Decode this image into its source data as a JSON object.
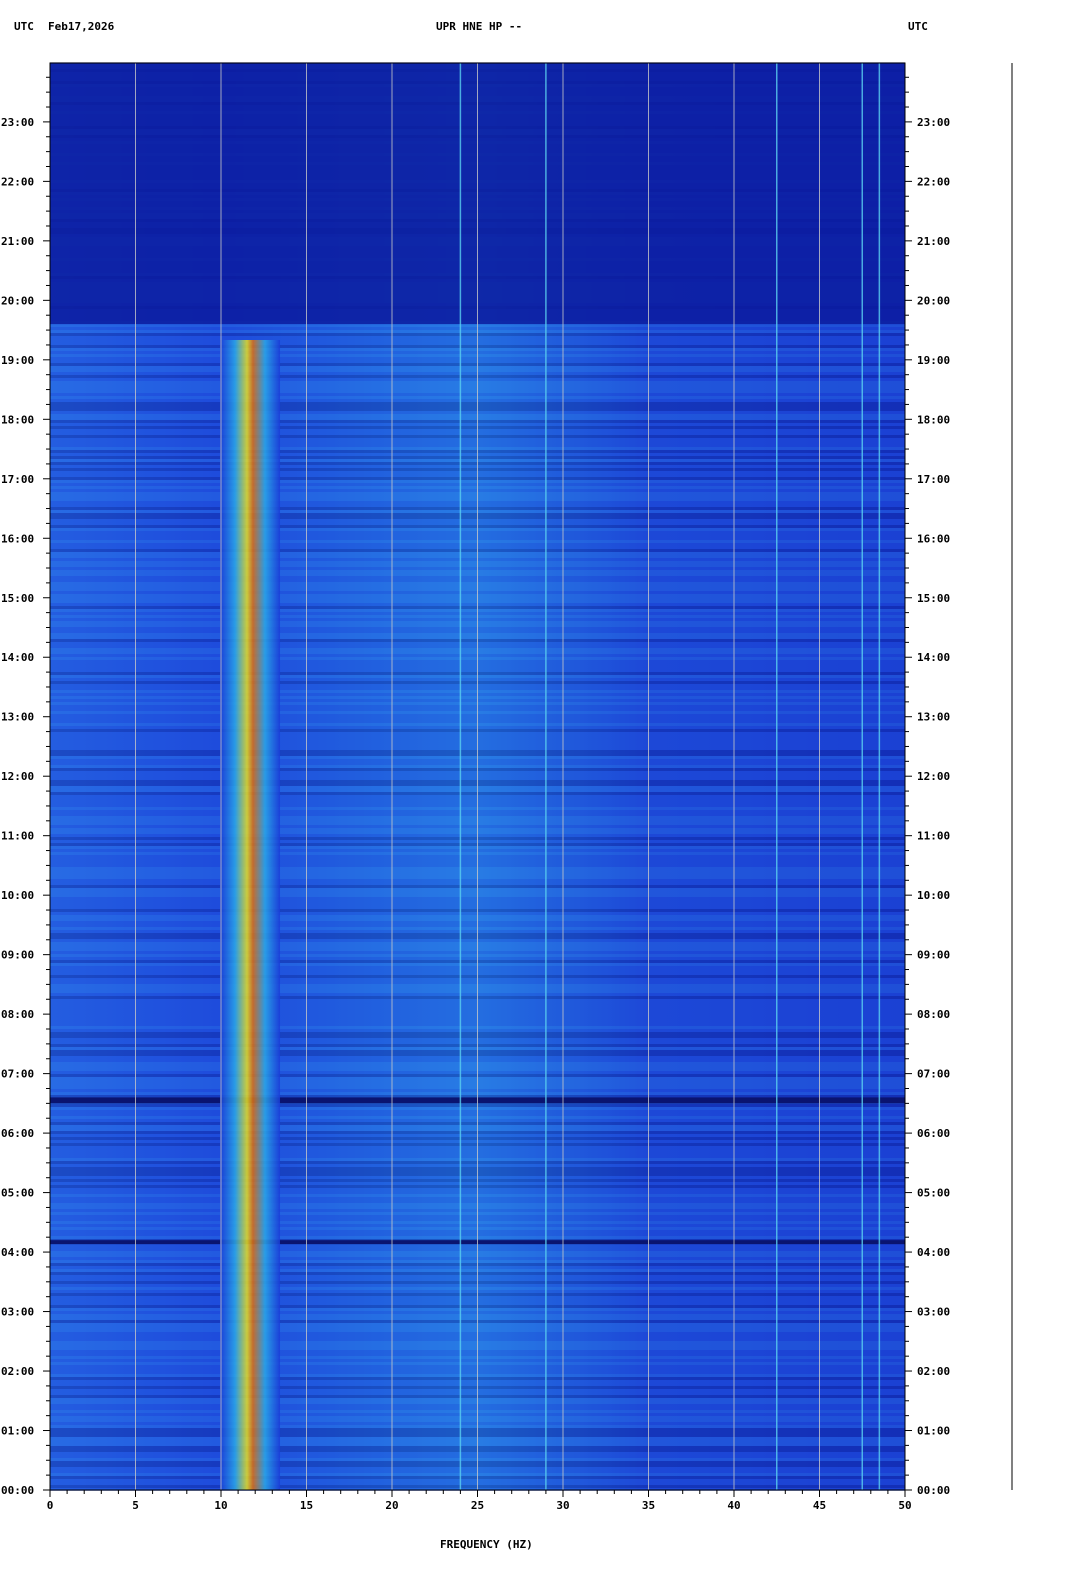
{
  "header": {
    "left_label": "UTC",
    "date": "Feb17,2026",
    "title": "UPR HNE HP --",
    "right_label": "UTC"
  },
  "chart_data": {
    "type": "heatmap",
    "title": "UPR HNE HP --",
    "xlabel": "FREQUENCY (HZ)",
    "ylabel": "",
    "xlim": [
      0,
      50
    ],
    "ylim_hours": [
      0,
      24
    ],
    "x_ticks": [
      0,
      5,
      10,
      15,
      20,
      25,
      30,
      35,
      40,
      45,
      50
    ],
    "y_tick_labels": [
      "00:00",
      "01:00",
      "02:00",
      "03:00",
      "04:00",
      "05:00",
      "06:00",
      "07:00",
      "08:00",
      "09:00",
      "10:00",
      "11:00",
      "12:00",
      "13:00",
      "14:00",
      "15:00",
      "16:00",
      "17:00",
      "18:00",
      "19:00",
      "20:00",
      "21:00",
      "22:00",
      "23:00"
    ],
    "colors": {
      "background": "#0a1a9e",
      "low": "#1a3cd8",
      "mid": "#2aa8e8",
      "high": "#e8e020",
      "peak": "#d82010",
      "gridline": "#c8c8c8"
    },
    "energy_band_hz": [
      10,
      13
    ],
    "quiet_periods_utc": [
      [
        "19:30",
        "23:59"
      ],
      [
        "04:00",
        "03:55"
      ]
    ],
    "strong_lines_hz": [
      24,
      29,
      42.5,
      47.5,
      48.5
    ]
  }
}
